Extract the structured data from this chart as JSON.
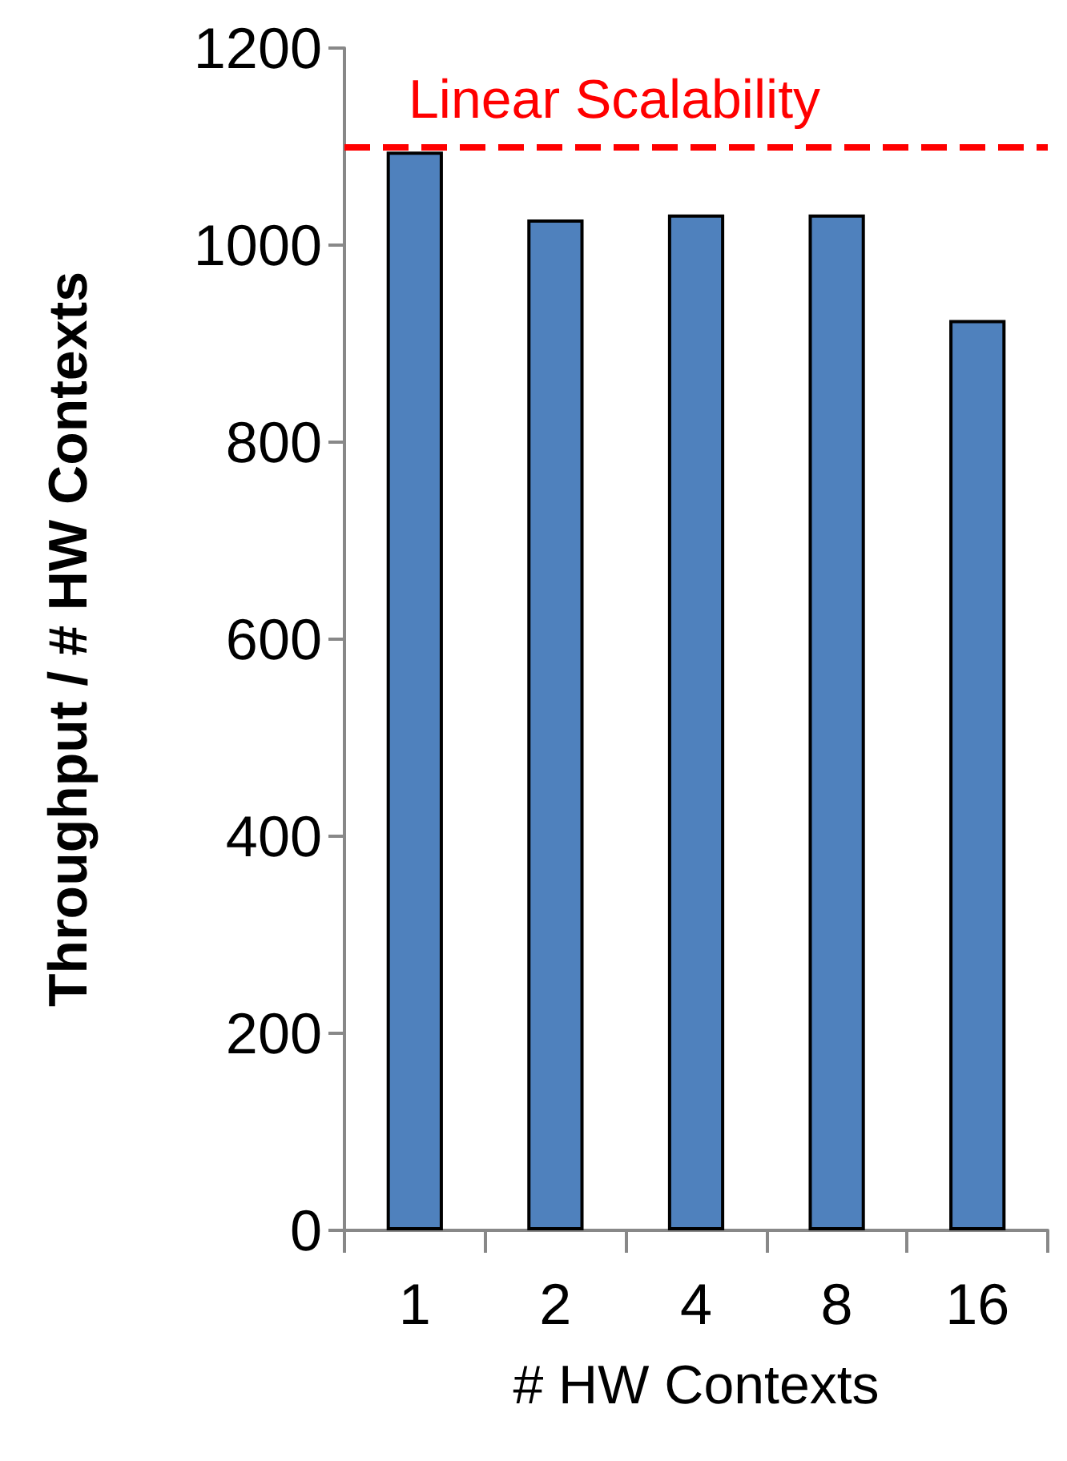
{
  "chart_data": {
    "type": "bar",
    "xlabel": "# HW Contexts",
    "ylabel": "Throughput / # HW Contexts",
    "categories": [
      "1",
      "2",
      "4",
      "8",
      "16"
    ],
    "series": [
      {
        "color": "#4f81bd",
        "values": [
          1095,
          1026,
          1031,
          1031,
          924
        ]
      }
    ],
    "ylim": [
      0,
      1200
    ],
    "yticks": [
      0,
      200,
      400,
      600,
      800,
      1000,
      1200
    ],
    "grid": false,
    "ref_lines": [
      {
        "axis": "y",
        "value": 1100,
        "label": "Linear Scalability",
        "color": "#ff0000",
        "line_style": "dashed"
      }
    ]
  }
}
